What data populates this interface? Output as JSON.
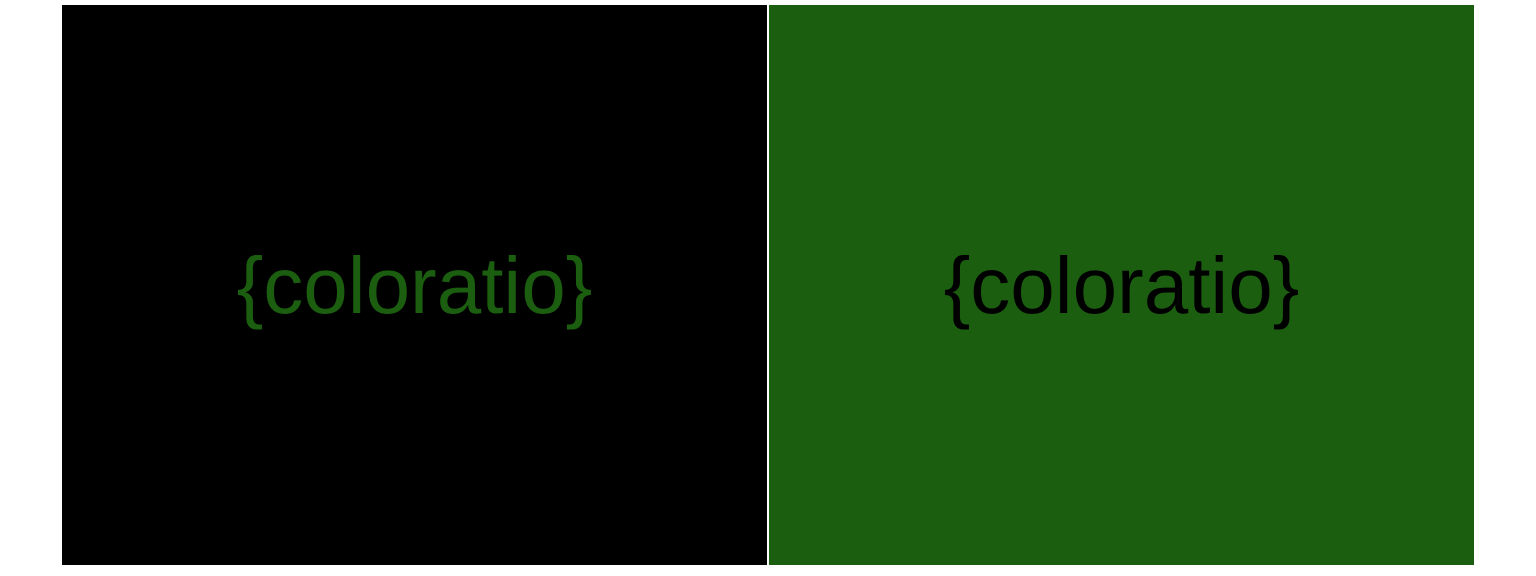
{
  "panels": [
    {
      "text": "{coloratio}",
      "background": "#000000",
      "text_color": "#1b5e10"
    },
    {
      "text": "{coloratio}",
      "background": "#1b5e10",
      "text_color": "#000000"
    }
  ]
}
